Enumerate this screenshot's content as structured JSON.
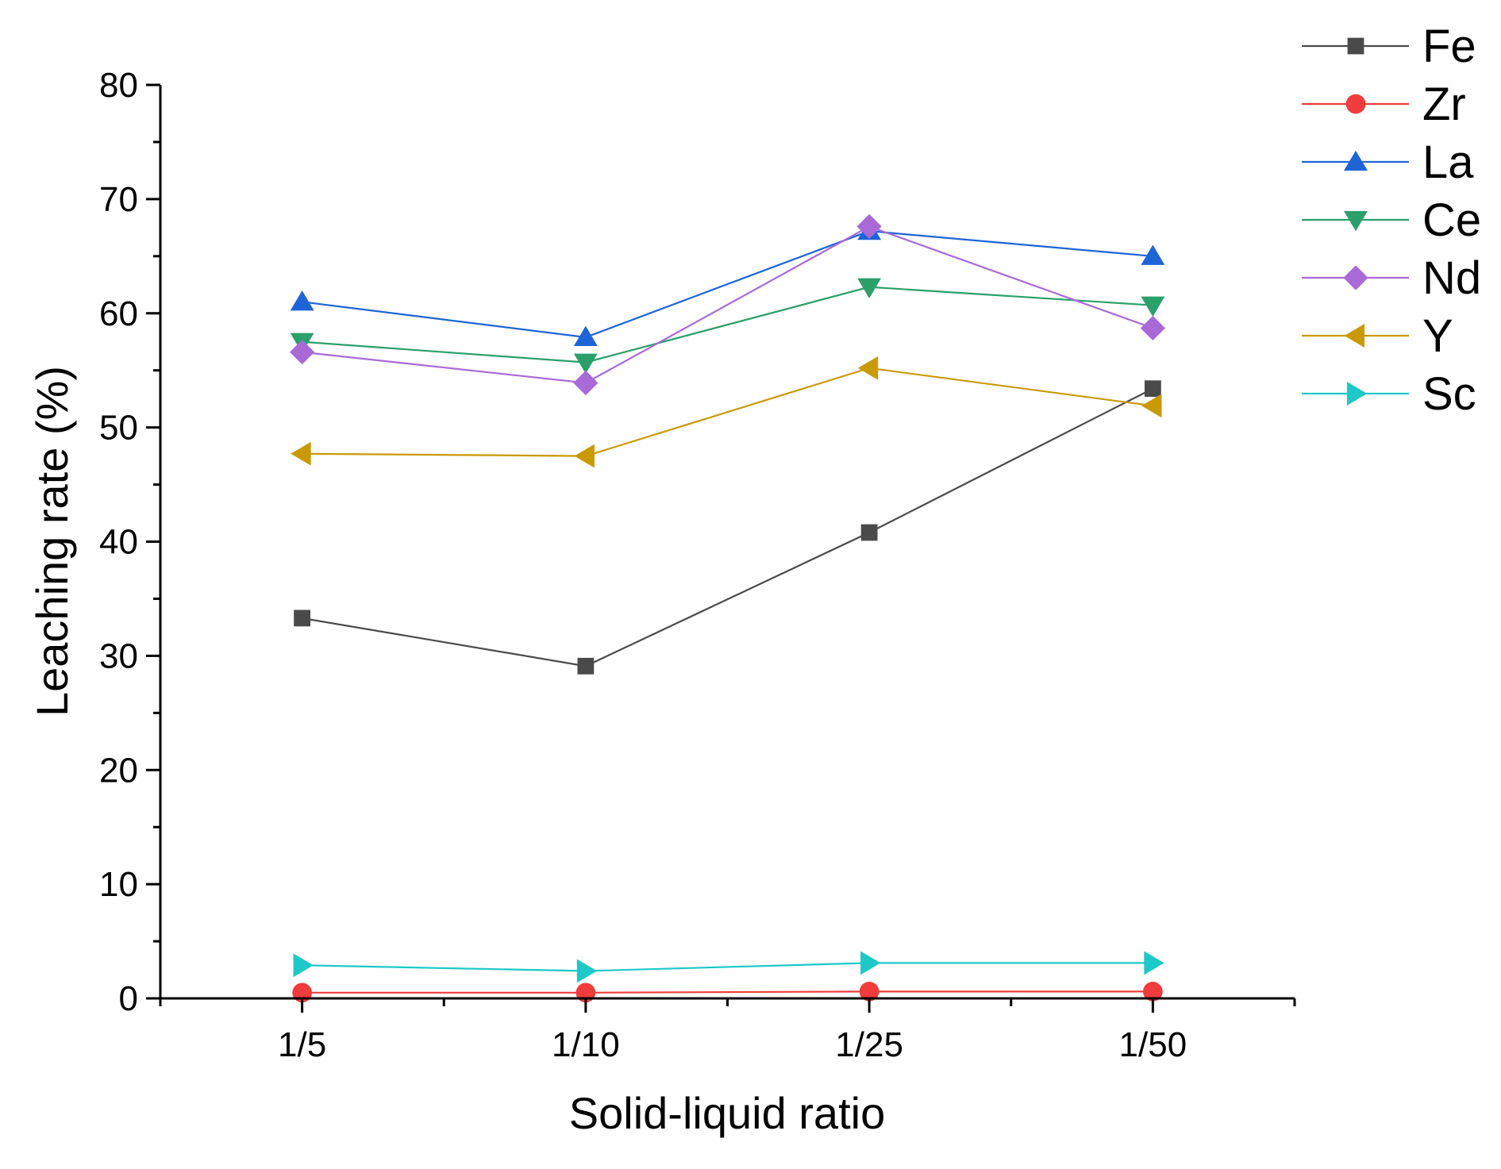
{
  "chart_data": {
    "type": "line",
    "title": "",
    "xlabel": "Solid-liquid ratio",
    "ylabel": "Leaching rate (%)",
    "categories": [
      "1/5",
      "1/10",
      "1/25",
      "1/50"
    ],
    "ylim": [
      0,
      80
    ],
    "yticks": [
      "0",
      "10",
      "20",
      "30",
      "40",
      "50",
      "60",
      "70",
      "80"
    ],
    "grid": false,
    "legend_position": "top-right",
    "series": [
      {
        "name": "Fe",
        "marker": "square",
        "color": "#4a4a4a",
        "values": [
          33.3,
          29.1,
          40.8,
          53.4
        ]
      },
      {
        "name": "Zr",
        "marker": "circle",
        "color": "#f03c3c",
        "values": [
          0.5,
          0.5,
          0.6,
          0.6
        ]
      },
      {
        "name": "La",
        "marker": "triangle-up",
        "color": "#1e64d7",
        "values": [
          61.0,
          57.9,
          67.2,
          65.0
        ]
      },
      {
        "name": "Ce",
        "marker": "triangle-down",
        "color": "#2ba06a",
        "values": [
          57.5,
          55.7,
          62.3,
          60.7
        ]
      },
      {
        "name": "Nd",
        "marker": "diamond",
        "color": "#a96ad7",
        "values": [
          56.6,
          53.9,
          67.6,
          58.7
        ]
      },
      {
        "name": "Y",
        "marker": "triangle-left",
        "color": "#c99a06",
        "values": [
          47.7,
          47.5,
          55.2,
          51.9
        ]
      },
      {
        "name": "Sc",
        "marker": "triangle-right",
        "color": "#1ec8c8",
        "values": [
          2.9,
          2.4,
          3.1,
          3.1
        ]
      }
    ]
  }
}
